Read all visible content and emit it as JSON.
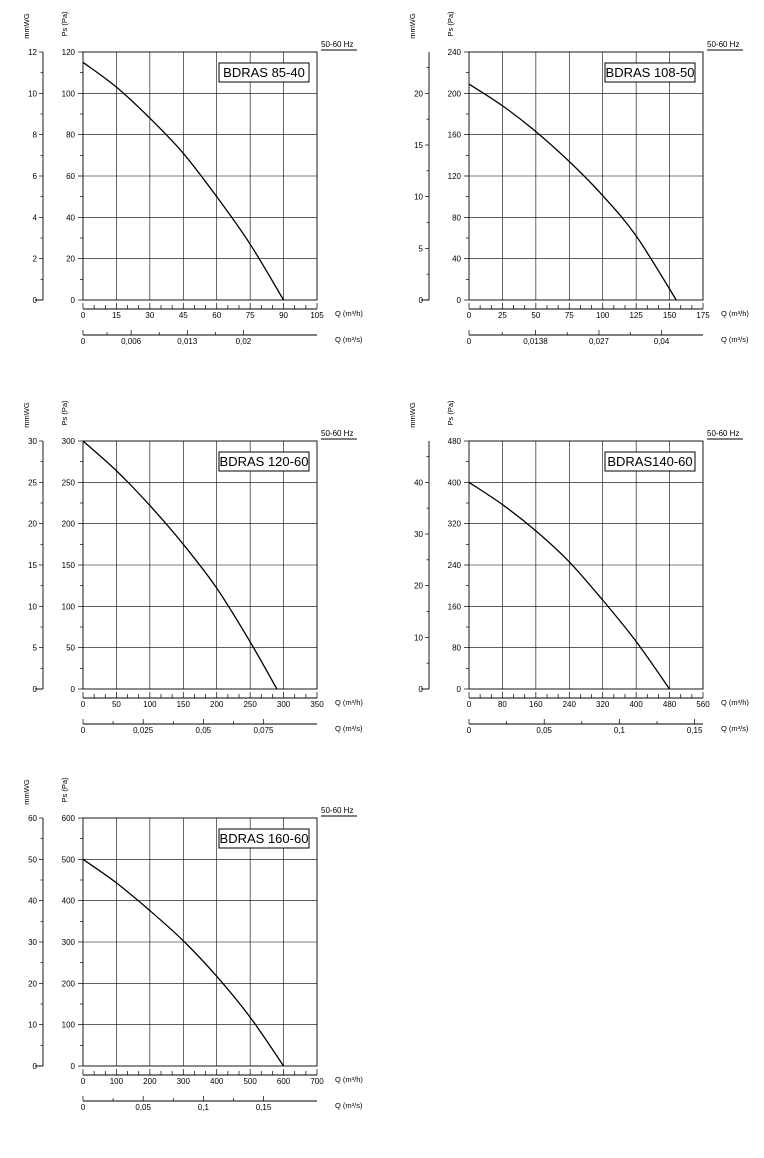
{
  "chart_data": [
    {
      "type": "line",
      "title": "BDRAS 85-40",
      "frequency_label": "50-60 Hz",
      "y_primary_label": "Ps (Pa)",
      "y_secondary_label": "mmWG",
      "x_primary_label": "Q (m³/h)",
      "x_secondary_label": "Q (m³/s)",
      "xlim": [
        0,
        105
      ],
      "ylim": [
        0,
        120
      ],
      "x_ticks": [
        "0",
        "15",
        "30",
        "45",
        "60",
        "75",
        "90",
        "105"
      ],
      "x_secondary_ticks": [
        {
          "label": "0",
          "at": 0
        },
        {
          "label": "0,006",
          "at": 21.6
        },
        {
          "label": "0,013",
          "at": 46.8
        },
        {
          "label": "0,02",
          "at": 72
        }
      ],
      "y_ticks": [
        "0",
        "20",
        "40",
        "60",
        "80",
        "100",
        "120"
      ],
      "y_secondary_ticks": [
        "0",
        "2",
        "4",
        "6",
        "8",
        "10",
        "12"
      ],
      "grid": true,
      "series": [
        {
          "x": [
            0,
            15,
            30,
            45,
            60,
            75,
            90
          ],
          "y": [
            115,
            103,
            88,
            71,
            50,
            27,
            0
          ]
        }
      ]
    },
    {
      "type": "line",
      "title": "BDRAS 108-50",
      "frequency_label": "50-60 Hz",
      "y_primary_label": "Ps (Pa)",
      "y_secondary_label": "mmWG",
      "x_primary_label": "Q (m³/h)",
      "x_secondary_label": "Q (m³/s)",
      "xlim": [
        0,
        175
      ],
      "ylim": [
        0,
        240
      ],
      "x_ticks": [
        "0",
        "25",
        "50",
        "75",
        "100",
        "125",
        "150",
        "175"
      ],
      "x_secondary_ticks": [
        {
          "label": "0",
          "at": 0
        },
        {
          "label": "0,0138",
          "at": 49.7
        },
        {
          "label": "0,027",
          "at": 97.2
        },
        {
          "label": "0,04",
          "at": 144
        }
      ],
      "y_ticks": [
        "0",
        "40",
        "80",
        "120",
        "160",
        "200",
        "240"
      ],
      "y_secondary_ticks": [
        "0",
        "5",
        "10",
        "15",
        "20"
      ],
      "grid": true,
      "series": [
        {
          "x": [
            0,
            25,
            50,
            75,
            100,
            125,
            155
          ],
          "y": [
            209,
            188,
            163,
            134,
            101,
            62,
            0
          ]
        }
      ]
    },
    {
      "type": "line",
      "title": "BDRAS 120-60",
      "frequency_label": "50-60 Hz",
      "y_primary_label": "Ps (Pa)",
      "y_secondary_label": "mmWG",
      "x_primary_label": "Q (m³/h)",
      "x_secondary_label": "Q (m³/s)",
      "xlim": [
        0,
        350
      ],
      "ylim": [
        0,
        300
      ],
      "x_ticks": [
        "0",
        "50",
        "100",
        "150",
        "200",
        "250",
        "300",
        "350"
      ],
      "x_secondary_ticks": [
        {
          "label": "0",
          "at": 0
        },
        {
          "label": "0,025",
          "at": 90
        },
        {
          "label": "0,05",
          "at": 180
        },
        {
          "label": "0,075",
          "at": 270
        }
      ],
      "y_ticks": [
        "0",
        "50",
        "100",
        "150",
        "200",
        "250",
        "300"
      ],
      "y_secondary_ticks": [
        "0",
        "5",
        "10",
        "15",
        "20",
        "25",
        "30"
      ],
      "grid": true,
      "series": [
        {
          "x": [
            0,
            50,
            100,
            150,
            200,
            250,
            290
          ],
          "y": [
            300,
            264,
            222,
            175,
            122,
            57,
            0
          ]
        }
      ]
    },
    {
      "type": "line",
      "title": "BDRAS140-60",
      "frequency_label": "50-60 Hz",
      "y_primary_label": "Ps (Pa)",
      "y_secondary_label": "mmWG",
      "x_primary_label": "Q (m³/h)",
      "x_secondary_label": "Q (m³/s)",
      "xlim": [
        0,
        560
      ],
      "ylim": [
        0,
        480
      ],
      "x_ticks": [
        "0",
        "80",
        "160",
        "240",
        "320",
        "400",
        "480",
        "560"
      ],
      "x_secondary_ticks": [
        {
          "label": "0",
          "at": 0
        },
        {
          "label": "0,05",
          "at": 180
        },
        {
          "label": "0,1",
          "at": 360
        },
        {
          "label": "0,15",
          "at": 540
        }
      ],
      "y_ticks": [
        "0",
        "80",
        "160",
        "240",
        "320",
        "400",
        "480"
      ],
      "y_secondary_ticks": [
        "0",
        "10",
        "20",
        "30",
        "40"
      ],
      "grid": true,
      "series": [
        {
          "x": [
            0,
            80,
            160,
            240,
            320,
            400,
            480
          ],
          "y": [
            400,
            357,
            306,
            246,
            172,
            92,
            0
          ]
        }
      ]
    },
    {
      "type": "line",
      "title": "BDRAS 160-60",
      "frequency_label": "50-60 Hz",
      "y_primary_label": "Ps (Pa)",
      "y_secondary_label": "mmWG",
      "x_primary_label": "Q (m³/h)",
      "x_secondary_label": "Q (m³/s)",
      "xlim": [
        0,
        700
      ],
      "ylim": [
        0,
        600
      ],
      "x_ticks": [
        "0",
        "100",
        "200",
        "300",
        "400",
        "500",
        "600",
        "700"
      ],
      "x_secondary_ticks": [
        {
          "label": "0",
          "at": 0
        },
        {
          "label": "0,05",
          "at": 180
        },
        {
          "label": "0,1",
          "at": 360
        },
        {
          "label": "0,15",
          "at": 540
        }
      ],
      "y_ticks": [
        "0",
        "100",
        "200",
        "300",
        "400",
        "500",
        "600"
      ],
      "y_secondary_ticks": [
        "0",
        "10",
        "20",
        "30",
        "40",
        "50",
        "60"
      ],
      "grid": true,
      "series": [
        {
          "x": [
            0,
            100,
            200,
            300,
            400,
            500,
            600
          ],
          "y": [
            500,
            443,
            376,
            303,
            217,
            118,
            0
          ]
        }
      ]
    }
  ]
}
